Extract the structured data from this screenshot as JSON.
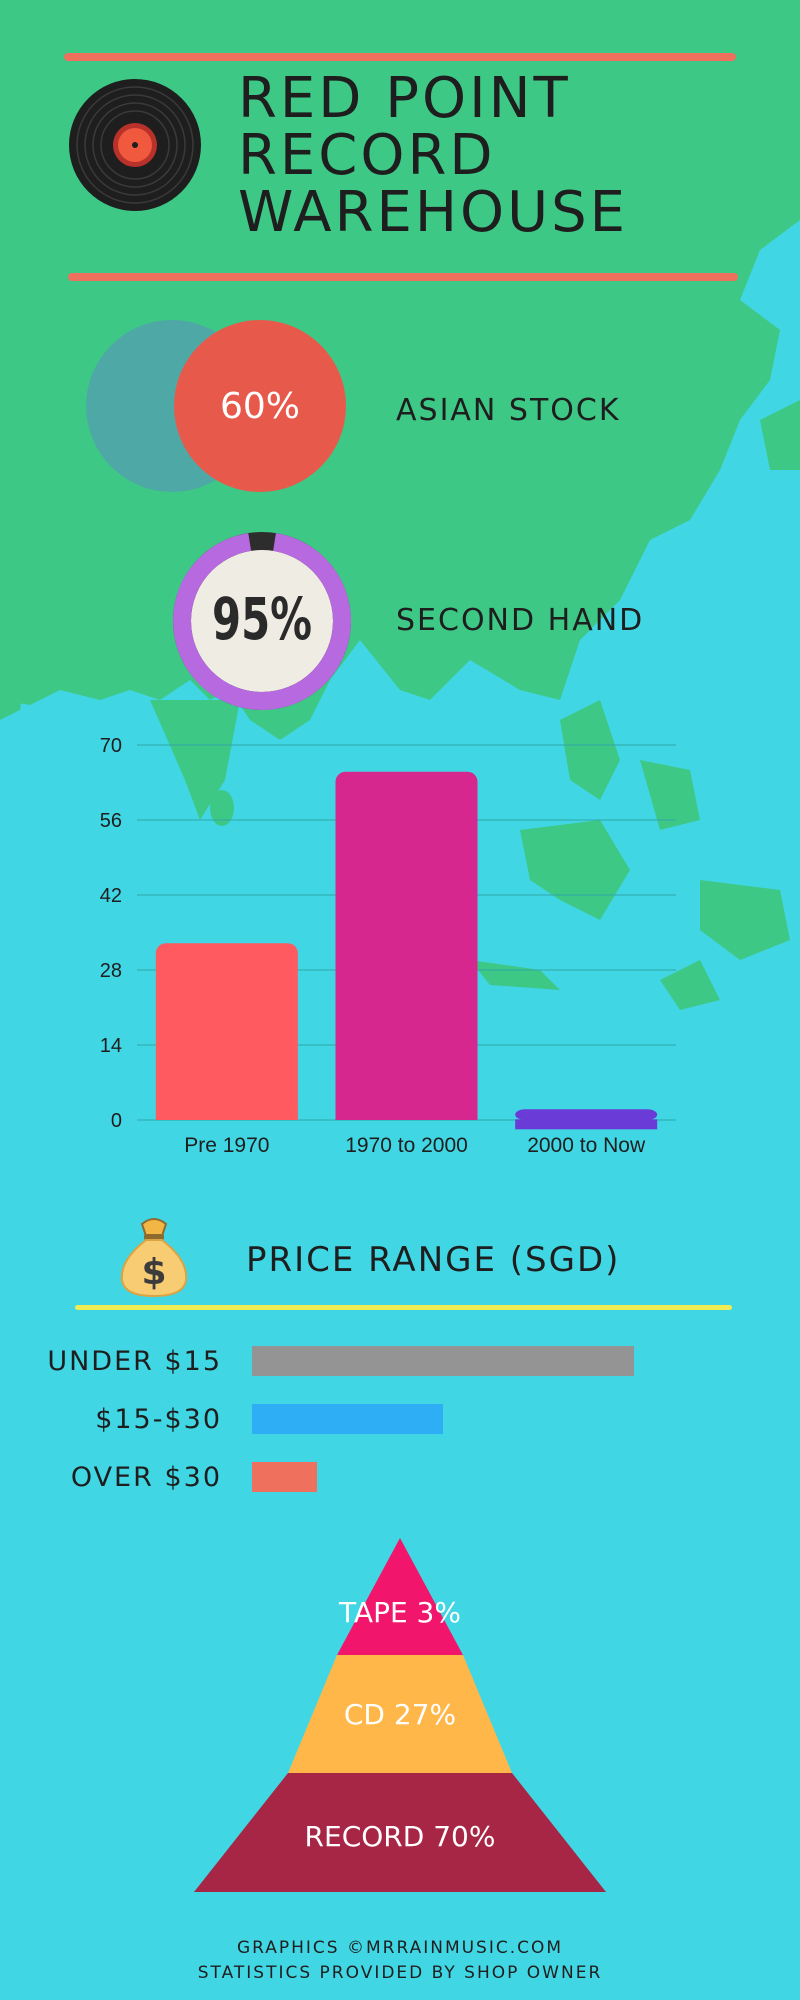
{
  "header": {
    "title": "RED POINT\nRECORD\nWAREHOUSE",
    "accent_color": "#f0705e"
  },
  "stats": {
    "asian_stock": {
      "value": "60%",
      "label": "ASIAN STOCK",
      "fraction": 0.6
    },
    "second_hand": {
      "value": "95%",
      "label": "SECOND HAND",
      "fraction": 0.95
    }
  },
  "chart_data": {
    "type": "bar",
    "categories": [
      "Pre 1970",
      "1970 to 2000",
      "2000 to Now"
    ],
    "values": [
      33,
      65,
      2
    ],
    "colors": [
      "#ff5a5f",
      "#d5278e",
      "#6a3bd6"
    ],
    "ylim": [
      0,
      70
    ],
    "yticks": [
      0,
      14,
      28,
      42,
      56,
      70
    ],
    "grid": true
  },
  "price": {
    "title": "PRICE RANGE (SGD)",
    "icon": "money-bag-icon",
    "rows": [
      {
        "label": "UNDER $15",
        "color": "#949494",
        "share": 1.0
      },
      {
        "label": "$15-$30",
        "color": "#2eaff5",
        "share": 0.5
      },
      {
        "label": "OVER $30",
        "color": "#f0705e",
        "share": 0.17
      }
    ]
  },
  "formats": [
    {
      "label": "TAPE 3%",
      "color": "#f2156c"
    },
    {
      "label": "CD 27%",
      "color": "#ffb74a"
    },
    {
      "label": "RECORD 70%",
      "color": "#a82645"
    }
  ],
  "footer": {
    "line1": "GRAPHICS ©MRRAINMUSIC.COM",
    "line2": "STATISTICS PROVIDED BY SHOP OWNER"
  }
}
